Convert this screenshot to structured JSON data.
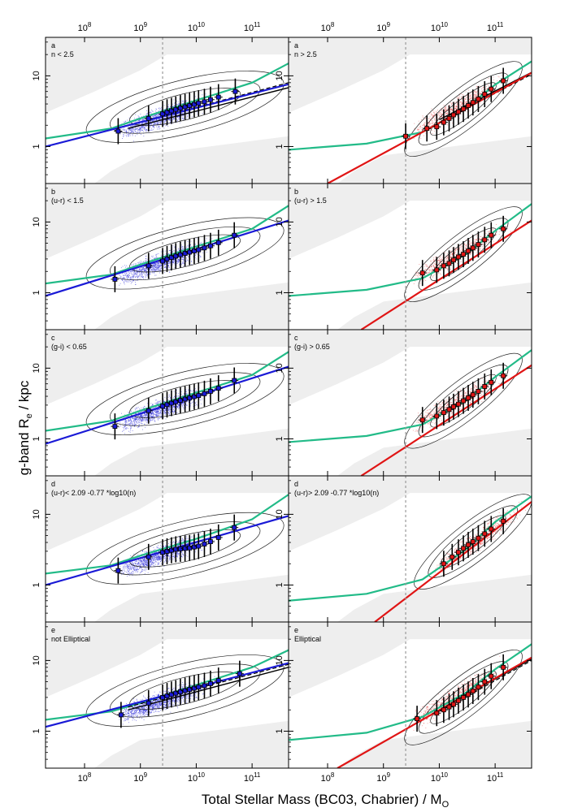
{
  "figure": {
    "xlabel": "Total Stellar Mass (BC03, Chabrier) / M",
    "xlabel_sub": "O",
    "ylabel": "g-band    R",
    "ylabel_sub": "e",
    "ylabel_unit": " / kpc"
  },
  "chart_data": {
    "type": "scatter",
    "x_scale": "log",
    "y_scale": "log",
    "xlim": [
      20000000,
      450000000000
    ],
    "ylim": [
      0.3,
      35
    ],
    "x_ticks": [
      {
        "v": 100000000,
        "label": "10^8"
      },
      {
        "v": 1000000000,
        "label": "10^9"
      },
      {
        "v": 10000000000,
        "label": "10^10"
      },
      {
        "v": 100000000000,
        "label": "10^11"
      }
    ],
    "y_ticks": [
      {
        "v": 1,
        "label": "1"
      },
      {
        "v": 10,
        "label": "10"
      }
    ],
    "mass_limit_line": 2500000000,
    "colors": {
      "late": "#1a1ad6",
      "early": "#e01515",
      "fit_green": "#22bb88",
      "shade": "#eeeeee"
    },
    "shade_top": [
      [
        20000000,
        3
      ],
      [
        150000000,
        6
      ],
      [
        1000000000,
        12
      ],
      [
        3000000000,
        20
      ],
      [
        450000000000,
        20
      ]
    ],
    "shade_bottom": [
      [
        20000000,
        0.3
      ],
      [
        150000000,
        0.3
      ],
      [
        300000000,
        0.45
      ],
      [
        1000000000,
        0.75
      ],
      [
        450000000000,
        1.4
      ]
    ],
    "panels": [
      {
        "row": 0,
        "col": 0,
        "letter": "a",
        "criterion": "n < 2.5",
        "group": "late",
        "points": [
          [
            400000000,
            1.65
          ],
          [
            1400000000,
            2.5
          ],
          [
            2500000000,
            2.9
          ],
          [
            3000000000,
            3.05
          ],
          [
            3600000000,
            3.2
          ],
          [
            4300000000,
            3.35
          ],
          [
            5200000000,
            3.5
          ],
          [
            6300000000,
            3.65
          ],
          [
            7600000000,
            3.8
          ],
          [
            9200000000,
            3.95
          ],
          [
            11000000000,
            4.1
          ],
          [
            14000000000,
            4.3
          ],
          [
            18000000000,
            4.6
          ],
          [
            25000000000,
            5.0
          ],
          [
            50000000000,
            6.0
          ]
        ],
        "fit": [
          [
            20000000,
            1.0
          ],
          [
            450000000000,
            7.6
          ]
        ],
        "green": [
          [
            20000000,
            1.3
          ],
          [
            300000000,
            1.8
          ],
          [
            1000000000,
            2.5
          ],
          [
            10000000000,
            4.5
          ],
          [
            100000000000,
            8.0
          ],
          [
            450000000000,
            15.0
          ]
        ],
        "aux_solid": [
          [
            600000000,
            1.8
          ],
          [
            450000000000,
            6.8
          ]
        ],
        "aux_dashed": [
          [
            600000000,
            2.0
          ],
          [
            450000000000,
            8.0
          ]
        ]
      },
      {
        "row": 0,
        "col": 1,
        "letter": "a",
        "criterion": "n > 2.5",
        "group": "early",
        "points": [
          [
            2500000000,
            1.4
          ],
          [
            6000000000,
            1.8
          ],
          [
            9000000000,
            1.9
          ],
          [
            12000000000,
            2.2
          ],
          [
            15000000000,
            2.5
          ],
          [
            18000000000,
            2.8
          ],
          [
            22000000000,
            3.1
          ],
          [
            27000000000,
            3.4
          ],
          [
            33000000000,
            3.8
          ],
          [
            40000000000,
            4.2
          ],
          [
            50000000000,
            4.7
          ],
          [
            65000000000,
            5.5
          ],
          [
            85000000000,
            6.5
          ],
          [
            140000000000,
            8.5
          ]
        ],
        "fit": [
          [
            100000000,
            0.3
          ],
          [
            450000000000,
            11.0
          ]
        ],
        "green": [
          [
            20000000,
            0.9
          ],
          [
            500000000,
            1.1
          ],
          [
            5000000000,
            1.6
          ],
          [
            30000000000,
            3.5
          ],
          [
            100000000000,
            7.5
          ],
          [
            450000000000,
            16.0
          ]
        ],
        "aux_solid": [
          [
            10000000000,
            2.4
          ],
          [
            450000000000,
            11.2
          ]
        ],
        "aux_dashed": [
          [
            10000000000,
            2.2
          ],
          [
            450000000000,
            10.5
          ]
        ]
      },
      {
        "row": 1,
        "col": 0,
        "letter": "b",
        "criterion": "(u-r) < 1.5",
        "group": "late",
        "points": [
          [
            350000000,
            1.55
          ],
          [
            1400000000,
            2.4
          ],
          [
            2500000000,
            2.8
          ],
          [
            3000000000,
            3.0
          ],
          [
            3600000000,
            3.15
          ],
          [
            4300000000,
            3.3
          ],
          [
            5200000000,
            3.45
          ],
          [
            6300000000,
            3.6
          ],
          [
            7600000000,
            3.75
          ],
          [
            9200000000,
            3.9
          ],
          [
            11000000000,
            4.05
          ],
          [
            14000000000,
            4.3
          ],
          [
            18000000000,
            4.6
          ],
          [
            25000000000,
            5.1
          ],
          [
            48000000000,
            6.5
          ]
        ],
        "fit": [
          [
            20000000,
            0.9
          ],
          [
            450000000000,
            10.5
          ]
        ],
        "green": [
          [
            20000000,
            1.35
          ],
          [
            300000000,
            1.8
          ],
          [
            1000000000,
            2.5
          ],
          [
            10000000000,
            4.5
          ],
          [
            100000000000,
            8.0
          ],
          [
            450000000000,
            17.0
          ]
        ]
      },
      {
        "row": 1,
        "col": 1,
        "letter": "b",
        "criterion": "(u-r) > 1.5",
        "group": "early",
        "points": [
          [
            5000000000,
            1.9
          ],
          [
            9000000000,
            2.1
          ],
          [
            12000000000,
            2.4
          ],
          [
            15000000000,
            2.6
          ],
          [
            18000000000,
            2.9
          ],
          [
            22000000000,
            3.2
          ],
          [
            27000000000,
            3.5
          ],
          [
            33000000000,
            3.9
          ],
          [
            40000000000,
            4.3
          ],
          [
            50000000000,
            4.8
          ],
          [
            65000000000,
            5.6
          ],
          [
            85000000000,
            6.5
          ],
          [
            140000000000,
            8.0
          ]
        ],
        "fit": [
          [
            400000000,
            0.3
          ],
          [
            450000000000,
            10.5
          ]
        ],
        "green": [
          [
            20000000,
            0.9
          ],
          [
            500000000,
            1.1
          ],
          [
            5000000000,
            1.6
          ],
          [
            30000000000,
            3.5
          ],
          [
            100000000000,
            7.5
          ],
          [
            450000000000,
            18.0
          ]
        ]
      },
      {
        "row": 2,
        "col": 0,
        "letter": "c",
        "criterion": "(g-i) < 0.65",
        "group": "late",
        "points": [
          [
            350000000,
            1.5
          ],
          [
            1400000000,
            2.5
          ],
          [
            2500000000,
            2.9
          ],
          [
            3000000000,
            3.05
          ],
          [
            3600000000,
            3.2
          ],
          [
            4300000000,
            3.35
          ],
          [
            5200000000,
            3.5
          ],
          [
            6300000000,
            3.65
          ],
          [
            7600000000,
            3.8
          ],
          [
            9200000000,
            3.95
          ],
          [
            11000000000,
            4.1
          ],
          [
            14000000000,
            4.35
          ],
          [
            18000000000,
            4.7
          ],
          [
            25000000000,
            5.2
          ],
          [
            48000000000,
            6.7
          ]
        ],
        "fit": [
          [
            20000000,
            0.85
          ],
          [
            450000000000,
            10.5
          ]
        ],
        "green": [
          [
            20000000,
            1.3
          ],
          [
            300000000,
            1.8
          ],
          [
            1000000000,
            2.5
          ],
          [
            10000000000,
            4.5
          ],
          [
            100000000000,
            8.0
          ],
          [
            450000000000,
            17.0
          ]
        ]
      },
      {
        "row": 2,
        "col": 1,
        "letter": "c",
        "criterion": "(g-i) > 0.65",
        "group": "early",
        "points": [
          [
            5000000000,
            1.85
          ],
          [
            9000000000,
            2.1
          ],
          [
            12000000000,
            2.35
          ],
          [
            15000000000,
            2.6
          ],
          [
            18000000000,
            2.85
          ],
          [
            22000000000,
            3.1
          ],
          [
            27000000000,
            3.45
          ],
          [
            33000000000,
            3.8
          ],
          [
            40000000000,
            4.2
          ],
          [
            50000000000,
            4.7
          ],
          [
            65000000000,
            5.5
          ],
          [
            85000000000,
            6.3
          ],
          [
            140000000000,
            7.8
          ]
        ],
        "fit": [
          [
            400000000,
            0.3
          ],
          [
            450000000000,
            11.0
          ]
        ],
        "green": [
          [
            20000000,
            0.9
          ],
          [
            500000000,
            1.1
          ],
          [
            5000000000,
            1.6
          ],
          [
            30000000000,
            3.5
          ],
          [
            100000000000,
            7.5
          ],
          [
            450000000000,
            18.0
          ]
        ]
      },
      {
        "row": 3,
        "col": 0,
        "letter": "d",
        "criterion": "(u-r)< 2.09 -0.77 *log10(n)",
        "group": "late",
        "points": [
          [
            400000000,
            1.6
          ],
          [
            1400000000,
            2.5
          ],
          [
            2500000000,
            2.9
          ],
          [
            3000000000,
            3.0
          ],
          [
            3600000000,
            3.1
          ],
          [
            4300000000,
            3.2
          ],
          [
            5200000000,
            3.25
          ],
          [
            6300000000,
            3.3
          ],
          [
            7600000000,
            3.35
          ],
          [
            9200000000,
            3.45
          ],
          [
            11000000000,
            3.55
          ],
          [
            14000000000,
            3.8
          ],
          [
            18000000000,
            4.1
          ],
          [
            25000000000,
            4.7
          ],
          [
            48000000000,
            6.5
          ]
        ],
        "fit": [
          [
            20000000,
            1.0
          ],
          [
            450000000000,
            9.5
          ]
        ],
        "green": [
          [
            20000000,
            1.45
          ],
          [
            300000000,
            1.9
          ],
          [
            1000000000,
            2.6
          ],
          [
            10000000000,
            4.5
          ],
          [
            100000000000,
            8.5
          ],
          [
            450000000000,
            19.0
          ]
        ]
      },
      {
        "row": 3,
        "col": 1,
        "letter": "d",
        "criterion": "(u-r)> 2.09 -0.77 *log10(n)",
        "group": "early",
        "points": [
          [
            12000000000,
            2.0
          ],
          [
            17000000000,
            2.5
          ],
          [
            22000000000,
            2.9
          ],
          [
            27000000000,
            3.3
          ],
          [
            33000000000,
            3.7
          ],
          [
            40000000000,
            4.1
          ],
          [
            50000000000,
            4.6
          ],
          [
            65000000000,
            5.3
          ],
          [
            85000000000,
            6.2
          ],
          [
            140000000000,
            8.0
          ]
        ],
        "fit": [
          [
            700000000,
            0.3
          ],
          [
            450000000000,
            15.0
          ]
        ],
        "green": [
          [
            20000000,
            0.6
          ],
          [
            500000000,
            0.75
          ],
          [
            5000000000,
            1.2
          ],
          [
            30000000000,
            3.2
          ],
          [
            100000000000,
            7.8
          ],
          [
            450000000000,
            18.0
          ]
        ]
      },
      {
        "row": 4,
        "col": 0,
        "letter": "e",
        "criterion": "not Elliptical",
        "group": "late",
        "points": [
          [
            450000000,
            1.7
          ],
          [
            1400000000,
            2.5
          ],
          [
            2500000000,
            3.0
          ],
          [
            3000000000,
            3.15
          ],
          [
            3600000000,
            3.3
          ],
          [
            4300000000,
            3.45
          ],
          [
            5200000000,
            3.6
          ],
          [
            6300000000,
            3.75
          ],
          [
            7600000000,
            3.9
          ],
          [
            9200000000,
            4.05
          ],
          [
            11000000000,
            4.2
          ],
          [
            14000000000,
            4.4
          ],
          [
            18000000000,
            4.7
          ],
          [
            25000000000,
            5.2
          ],
          [
            60000000000,
            6.5
          ]
        ],
        "fit": [
          [
            20000000,
            1.15
          ],
          [
            450000000000,
            9.2
          ]
        ],
        "green": [
          [
            20000000,
            1.45
          ],
          [
            300000000,
            1.9
          ],
          [
            1000000000,
            2.5
          ],
          [
            10000000000,
            4.5
          ],
          [
            100000000000,
            8.0
          ],
          [
            450000000000,
            14.0
          ]
        ],
        "aux_solid": [
          [
            600000000,
            2.0
          ],
          [
            450000000000,
            8.0
          ]
        ],
        "aux_dashed": [
          [
            600000000,
            2.2
          ],
          [
            450000000000,
            8.8
          ]
        ]
      },
      {
        "row": 4,
        "col": 1,
        "letter": "e",
        "criterion": "Elliptical",
        "group": "early",
        "points": [
          [
            4000000000,
            1.5
          ],
          [
            9000000000,
            1.8
          ],
          [
            12000000000,
            2.0
          ],
          [
            15000000000,
            2.2
          ],
          [
            18000000000,
            2.4
          ],
          [
            22000000000,
            2.7
          ],
          [
            27000000000,
            3.0
          ],
          [
            33000000000,
            3.3
          ],
          [
            40000000000,
            3.7
          ],
          [
            50000000000,
            4.2
          ],
          [
            65000000000,
            5.0
          ],
          [
            85000000000,
            6.0
          ],
          [
            140000000000,
            8.0
          ]
        ],
        "fit": [
          [
            150000000,
            0.3
          ],
          [
            450000000000,
            11.0
          ]
        ],
        "green": [
          [
            20000000,
            0.75
          ],
          [
            500000000,
            0.95
          ],
          [
            5000000000,
            1.6
          ],
          [
            30000000000,
            3.5
          ],
          [
            100000000000,
            7.5
          ],
          [
            450000000000,
            17.0
          ]
        ],
        "aux_solid": [
          [
            10000000000,
            2.0
          ],
          [
            450000000000,
            10.5
          ]
        ],
        "aux_dashed": [
          [
            10000000000,
            1.9
          ],
          [
            450000000000,
            10.0
          ]
        ]
      }
    ]
  }
}
